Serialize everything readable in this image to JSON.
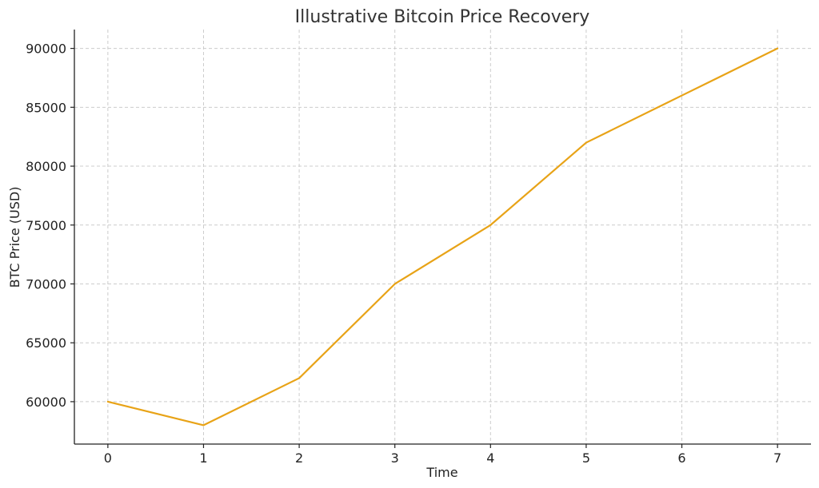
{
  "chart_data": {
    "type": "line",
    "title": "Illustrative Bitcoin Price Recovery",
    "xlabel": "Time",
    "ylabel": "BTC Price (USD)",
    "x": [
      0,
      1,
      2,
      3,
      4,
      5,
      6,
      7
    ],
    "series": [
      {
        "values": [
          60000,
          58000,
          62000,
          70000,
          75000,
          82000,
          86000,
          90000
        ],
        "color": "#E8A317"
      }
    ],
    "xticks": [
      "0",
      "1",
      "2",
      "3",
      "4",
      "5",
      "6",
      "7"
    ],
    "yticks": [
      "60000",
      "65000",
      "70000",
      "75000",
      "80000",
      "85000",
      "90000"
    ],
    "xlim": [
      -0.35,
      7.35
    ],
    "ylim": [
      56400,
      91600
    ],
    "grid": true,
    "grid_style": "dashed"
  }
}
